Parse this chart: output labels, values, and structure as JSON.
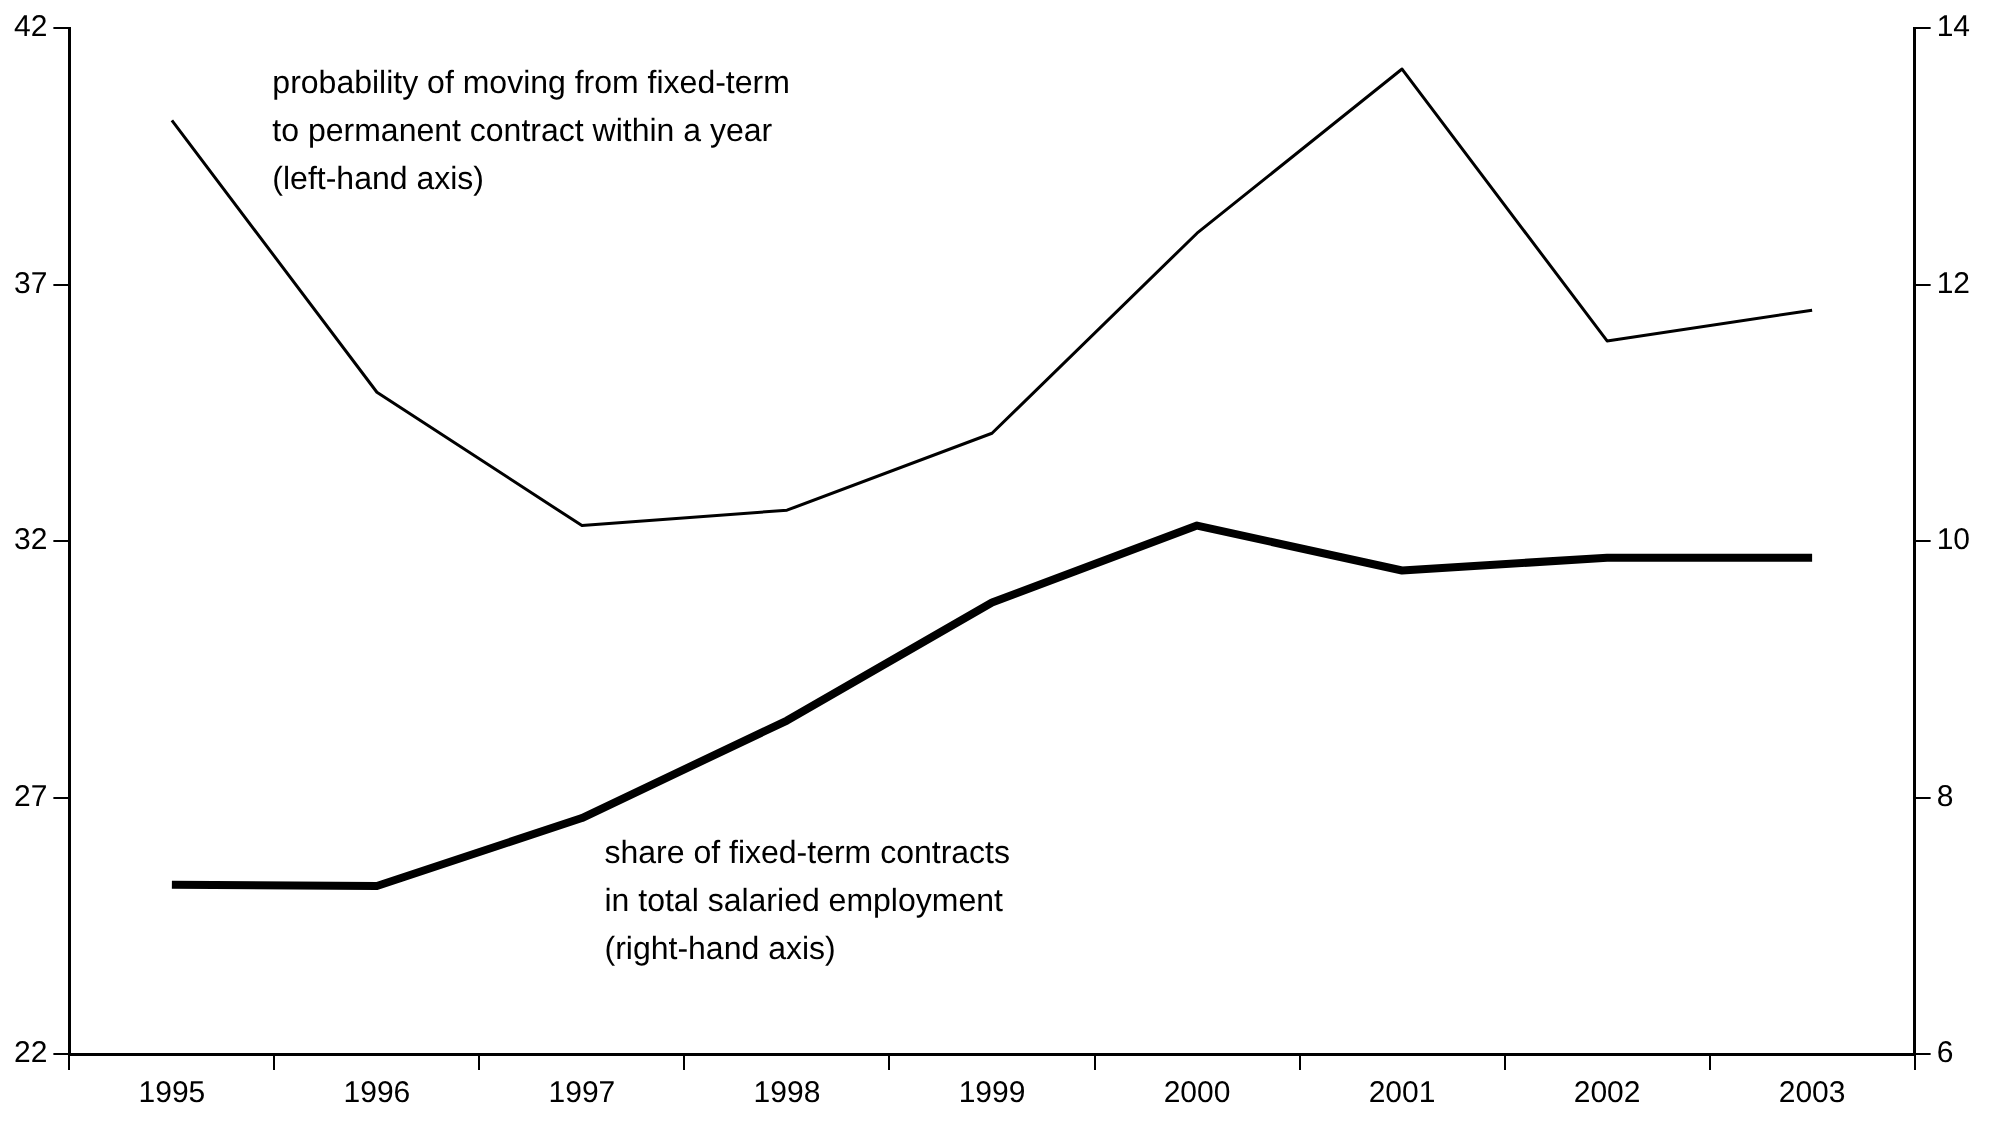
{
  "chart_data": {
    "type": "line",
    "categories": [
      "1995",
      "1996",
      "1997",
      "1998",
      "1999",
      "2000",
      "2001",
      "2002",
      "2003"
    ],
    "series": [
      {
        "name": "probability of moving from fixed-term\nto permanent contract within a year\n(left-hand axis)",
        "color": "#000000",
        "values": [
          40.2,
          34.9,
          32.3,
          32.6,
          34.1,
          38.0,
          41.2,
          35.9,
          36.5
        ]
      },
      {
        "name": "share of fixed-term contracts\nin total salaried employment\n(right-hand axis)",
        "color": "#000000",
        "axis": "y2",
        "values": [
          7.32,
          7.31,
          7.84,
          8.6,
          9.52,
          10.12,
          9.77,
          9.87,
          9.87
        ]
      }
    ],
    "ylim": [
      22,
      42
    ],
    "yticks": [
      22,
      27,
      32,
      37,
      42
    ],
    "y2lim": [
      6,
      14
    ],
    "y2ticks": [
      6,
      8,
      10,
      12,
      14
    ],
    "grid": false,
    "legend": false,
    "marker": "none",
    "line_style": "solid"
  }
}
